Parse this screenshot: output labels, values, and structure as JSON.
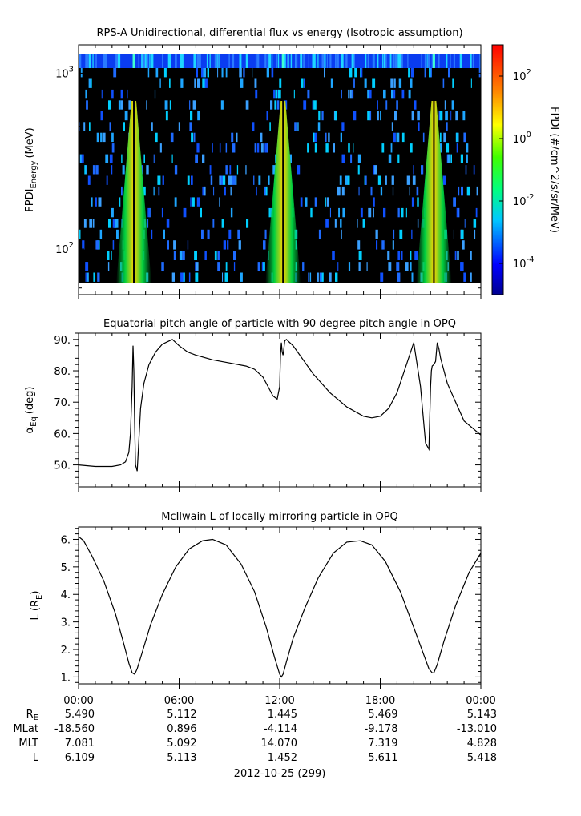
{
  "chart_data": [
    {
      "type": "heatmap",
      "title": "RPS-A Unidirectional, differential flux vs energy (Isotropic assumption)",
      "ylabel": "FPDI",
      "ylabel_sub": "Energy",
      "ylabel_unit": "(MeV)",
      "yscale": "log",
      "yticks": [
        {
          "base": "10",
          "exp": "3"
        },
        {
          "base": "10",
          "exp": "2"
        }
      ],
      "ylim": [
        55,
        1450
      ],
      "colorbar": {
        "label": "FPDI (#/cm^2/s/sr/MeV)",
        "scale": "log",
        "range": [
          1e-05,
          1000
        ],
        "ticks": [
          {
            "base": "10",
            "exp": "2"
          },
          {
            "base": "10",
            "exp": "0"
          },
          {
            "base": "10",
            "exp": "-2"
          },
          {
            "base": "10",
            "exp": "-4"
          }
        ]
      },
      "description_bands_hours": [
        3.3,
        12.2,
        21.2
      ]
    },
    {
      "type": "line",
      "title": "Equatorial pitch angle of particle with 90 degree pitch angle in OPQ",
      "ylabel": "α",
      "ylabel_sub": "Eq",
      "ylabel_unit": "(deg)",
      "ylim": [
        43,
        92
      ],
      "yticks": [
        "90.",
        "80.",
        "70.",
        "60.",
        "50."
      ],
      "x": [
        0,
        1.0,
        2.0,
        2.5,
        2.8,
        3.0,
        3.1,
        3.2,
        3.25,
        3.3,
        3.35,
        3.4,
        3.5,
        3.6,
        3.7,
        3.9,
        4.2,
        4.6,
        5.0,
        5.4,
        5.6,
        6.0,
        6.5,
        7.0,
        8.0,
        9.0,
        10.0,
        10.5,
        11.0,
        11.3,
        11.6,
        11.85,
        12.0,
        12.05,
        12.1,
        12.15,
        12.2,
        12.25,
        12.3,
        12.4,
        12.5,
        12.8,
        13.2,
        14.0,
        15.0,
        16.0,
        17.0,
        17.5,
        18.0,
        18.5,
        19.0,
        19.5,
        20.0,
        20.4,
        20.7,
        20.9,
        21.0,
        21.05,
        21.1,
        21.2,
        21.3,
        21.4,
        21.5,
        21.6,
        21.8,
        22.0,
        22.5,
        23.0,
        24.0
      ],
      "y": [
        50,
        49.5,
        49.5,
        50,
        51,
        54,
        60,
        75,
        88,
        80,
        62,
        50,
        48,
        58,
        68,
        76,
        82,
        86,
        88.5,
        89.5,
        90,
        88,
        86,
        85,
        83.5,
        82.5,
        81.5,
        80.5,
        78,
        75,
        72,
        71,
        75,
        85,
        89,
        86,
        85,
        87,
        89.5,
        90,
        89.5,
        88,
        85,
        79,
        73,
        68.5,
        65.5,
        65,
        65.5,
        68,
        73,
        81,
        89,
        75,
        57,
        55,
        75,
        80,
        81.5,
        82,
        83,
        89,
        87,
        84,
        80,
        76,
        70,
        64,
        59.5
      ]
    },
    {
      "type": "line",
      "title": "McIlwain L of locally mirroring particle in OPQ",
      "ylabel": "L (R",
      "ylabel_sub": "E",
      "ylabel_unit": ")",
      "ylim": [
        0.75,
        6.45
      ],
      "yticks": [
        "6.",
        "5.",
        "4.",
        "3.",
        "2.",
        "1."
      ],
      "x": [
        0,
        0.3,
        0.8,
        1.5,
        2.2,
        2.7,
        3.0,
        3.2,
        3.35,
        3.5,
        3.8,
        4.3,
        5.0,
        5.8,
        6.6,
        7.4,
        8.0,
        8.8,
        9.7,
        10.5,
        11.2,
        11.7,
        12.0,
        12.1,
        12.2,
        12.4,
        12.8,
        13.5,
        14.3,
        15.2,
        16.0,
        16.8,
        17.5,
        18.3,
        19.2,
        20.0,
        20.6,
        20.9,
        21.1,
        21.2,
        21.4,
        21.8,
        22.5,
        23.3,
        24.0
      ],
      "y": [
        6.1,
        5.95,
        5.4,
        4.5,
        3.3,
        2.2,
        1.5,
        1.15,
        1.1,
        1.3,
        1.9,
        2.9,
        4.0,
        5.0,
        5.65,
        5.95,
        6.0,
        5.8,
        5.1,
        4.1,
        2.8,
        1.7,
        1.1,
        1.0,
        1.1,
        1.55,
        2.4,
        3.5,
        4.6,
        5.5,
        5.9,
        5.95,
        5.8,
        5.2,
        4.1,
        2.8,
        1.8,
        1.3,
        1.15,
        1.15,
        1.45,
        2.3,
        3.6,
        4.8,
        5.5
      ]
    }
  ],
  "x_axis": {
    "tick_labels": [
      "00:00",
      "06:00",
      "12:00",
      "18:00",
      "00:00"
    ],
    "date_label": "2012-10-25 (299)"
  },
  "ephemeris": {
    "rows": [
      {
        "label": "R",
        "label_sub": "E",
        "values": [
          "5.490",
          "5.112",
          "1.445",
          "5.469",
          "5.143"
        ]
      },
      {
        "label": "MLat",
        "label_sub": "",
        "values": [
          "-18.560",
          "0.896",
          "-4.114",
          "-9.178",
          "-13.010"
        ]
      },
      {
        "label": "MLT",
        "label_sub": "",
        "values": [
          "7.081",
          "5.092",
          "14.070",
          "7.319",
          "4.828"
        ]
      },
      {
        "label": "L",
        "label_sub": "",
        "values": [
          "6.109",
          "5.113",
          "1.452",
          "5.611",
          "5.418"
        ]
      }
    ]
  },
  "colors": {
    "background": "#ffffff",
    "axis": "#000000",
    "spectrogram_fill": "#000000",
    "band_core": "#ffd400",
    "band_edge": "#00d040",
    "speckle": "#1ea6ff",
    "top_row": "#0a3cf0"
  }
}
